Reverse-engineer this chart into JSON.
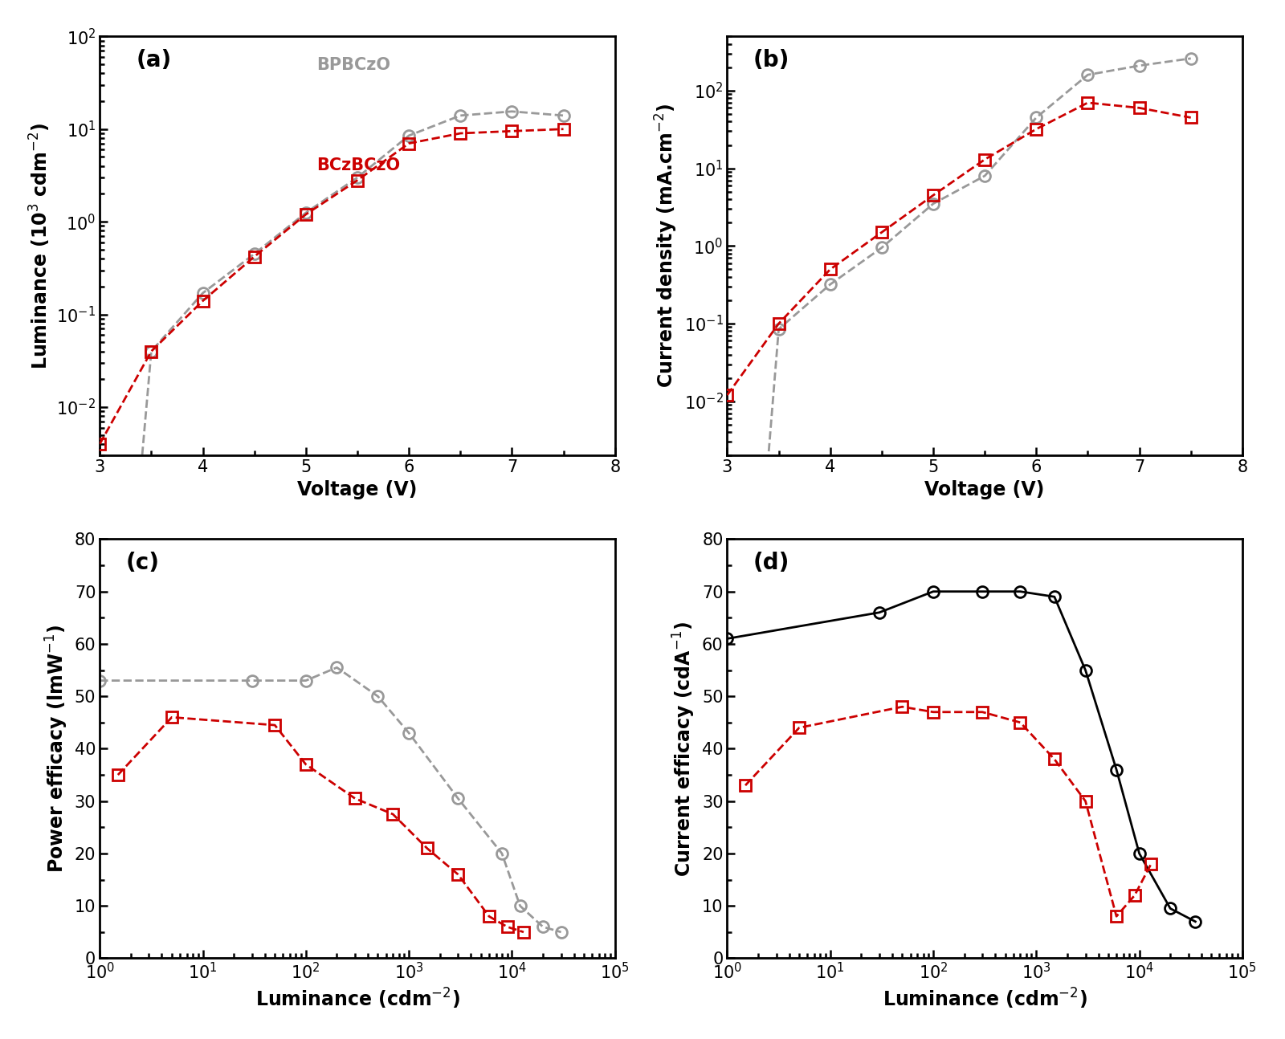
{
  "panel_a": {
    "label": "(a)",
    "gray_label": "BPBCzO",
    "red_label": "BCzBCzO",
    "gray_x": [
      3.0,
      3.35,
      3.5,
      4.0,
      4.5,
      5.0,
      5.5,
      6.0,
      6.5,
      7.0,
      7.5
    ],
    "gray_y": [
      0.003,
      0.0005,
      0.04,
      0.17,
      0.45,
      1.25,
      3.0,
      8.5,
      14.0,
      15.5,
      14.0
    ],
    "red_x": [
      3.0,
      3.5,
      4.0,
      4.5,
      5.0,
      5.5,
      6.0,
      6.5,
      7.0,
      7.5
    ],
    "red_y": [
      0.004,
      0.04,
      0.14,
      0.42,
      1.2,
      2.8,
      7.0,
      9.0,
      9.5,
      10.0
    ],
    "xlabel": "Voltage (V)",
    "ylabel": "Luminance (10$^3$ cdm$^{-2}$)",
    "xlim": [
      3,
      8
    ],
    "ylim_log": [
      0.003,
      100
    ]
  },
  "panel_b": {
    "label": "(b)",
    "gray_x": [
      3.0,
      3.35,
      3.5,
      4.0,
      4.5,
      5.0,
      5.5,
      6.0,
      6.5,
      7.0,
      7.5
    ],
    "gray_y": [
      0.002,
      0.0003,
      0.085,
      0.32,
      0.95,
      3.5,
      8.0,
      45.0,
      160.0,
      210.0,
      260.0
    ],
    "red_x": [
      3.0,
      3.5,
      4.0,
      4.5,
      5.0,
      5.5,
      6.0,
      6.5,
      7.0,
      7.5
    ],
    "red_y": [
      0.012,
      0.1,
      0.5,
      1.5,
      4.5,
      13.0,
      32.0,
      70.0,
      60.0,
      45.0
    ],
    "xlabel": "Voltage (V)",
    "ylabel": "Current density (mA.cm$^{-2}$)",
    "xlim": [
      3,
      8
    ],
    "ylim_log": [
      0.002,
      500
    ]
  },
  "panel_c": {
    "label": "(c)",
    "gray_x": [
      1.0,
      30.0,
      100.0,
      200.0,
      500.0,
      1000.0,
      3000.0,
      8000.0,
      12000.0,
      20000.0,
      30000.0
    ],
    "gray_y": [
      53.0,
      53.0,
      53.0,
      55.5,
      50.0,
      43.0,
      30.5,
      20.0,
      10.0,
      6.0,
      5.0
    ],
    "red_x": [
      1.5,
      5.0,
      50.0,
      100.0,
      300.0,
      700.0,
      1500.0,
      3000.0,
      6000.0,
      9000.0,
      13000.0
    ],
    "red_y": [
      35.0,
      46.0,
      44.5,
      37.0,
      30.5,
      27.5,
      21.0,
      16.0,
      8.0,
      6.0,
      5.0
    ],
    "xlabel": "Luminance (cdm$^{-2}$)",
    "ylabel": "Power efficacy (lmW$^{-1}$)",
    "xlim_log": [
      1,
      100000
    ],
    "ylim": [
      0,
      80
    ]
  },
  "panel_d": {
    "label": "(d)",
    "gray_x": [
      1.0,
      30.0,
      100.0,
      300.0,
      700.0,
      1500.0,
      3000.0,
      6000.0,
      10000.0,
      20000.0,
      35000.0
    ],
    "gray_y": [
      61.0,
      66.0,
      70.0,
      70.0,
      70.0,
      69.0,
      55.0,
      36.0,
      20.0,
      9.5,
      7.0
    ],
    "red_x": [
      1.5,
      5.0,
      50.0,
      100.0,
      300.0,
      700.0,
      1500.0,
      3000.0,
      6000.0,
      9000.0,
      13000.0
    ],
    "red_y": [
      33.0,
      44.0,
      48.0,
      47.0,
      47.0,
      45.0,
      38.0,
      30.0,
      8.0,
      12.0,
      18.0
    ],
    "xlabel": "Luminance (cdm$^{-2}$)",
    "ylabel": "Current efficacy (cdA$^{-1}$)",
    "xlim_log": [
      1,
      100000
    ],
    "ylim": [
      0,
      80
    ]
  },
  "gray_color": "#999999",
  "red_color": "#cc0000",
  "black_color": "#000000",
  "linewidth": 2.0,
  "markersize": 10,
  "markeredgewidth": 2.0,
  "fontsize_label": 17,
  "fontsize_tick": 15,
  "fontsize_legend": 15,
  "fontsize_panel_label": 20
}
